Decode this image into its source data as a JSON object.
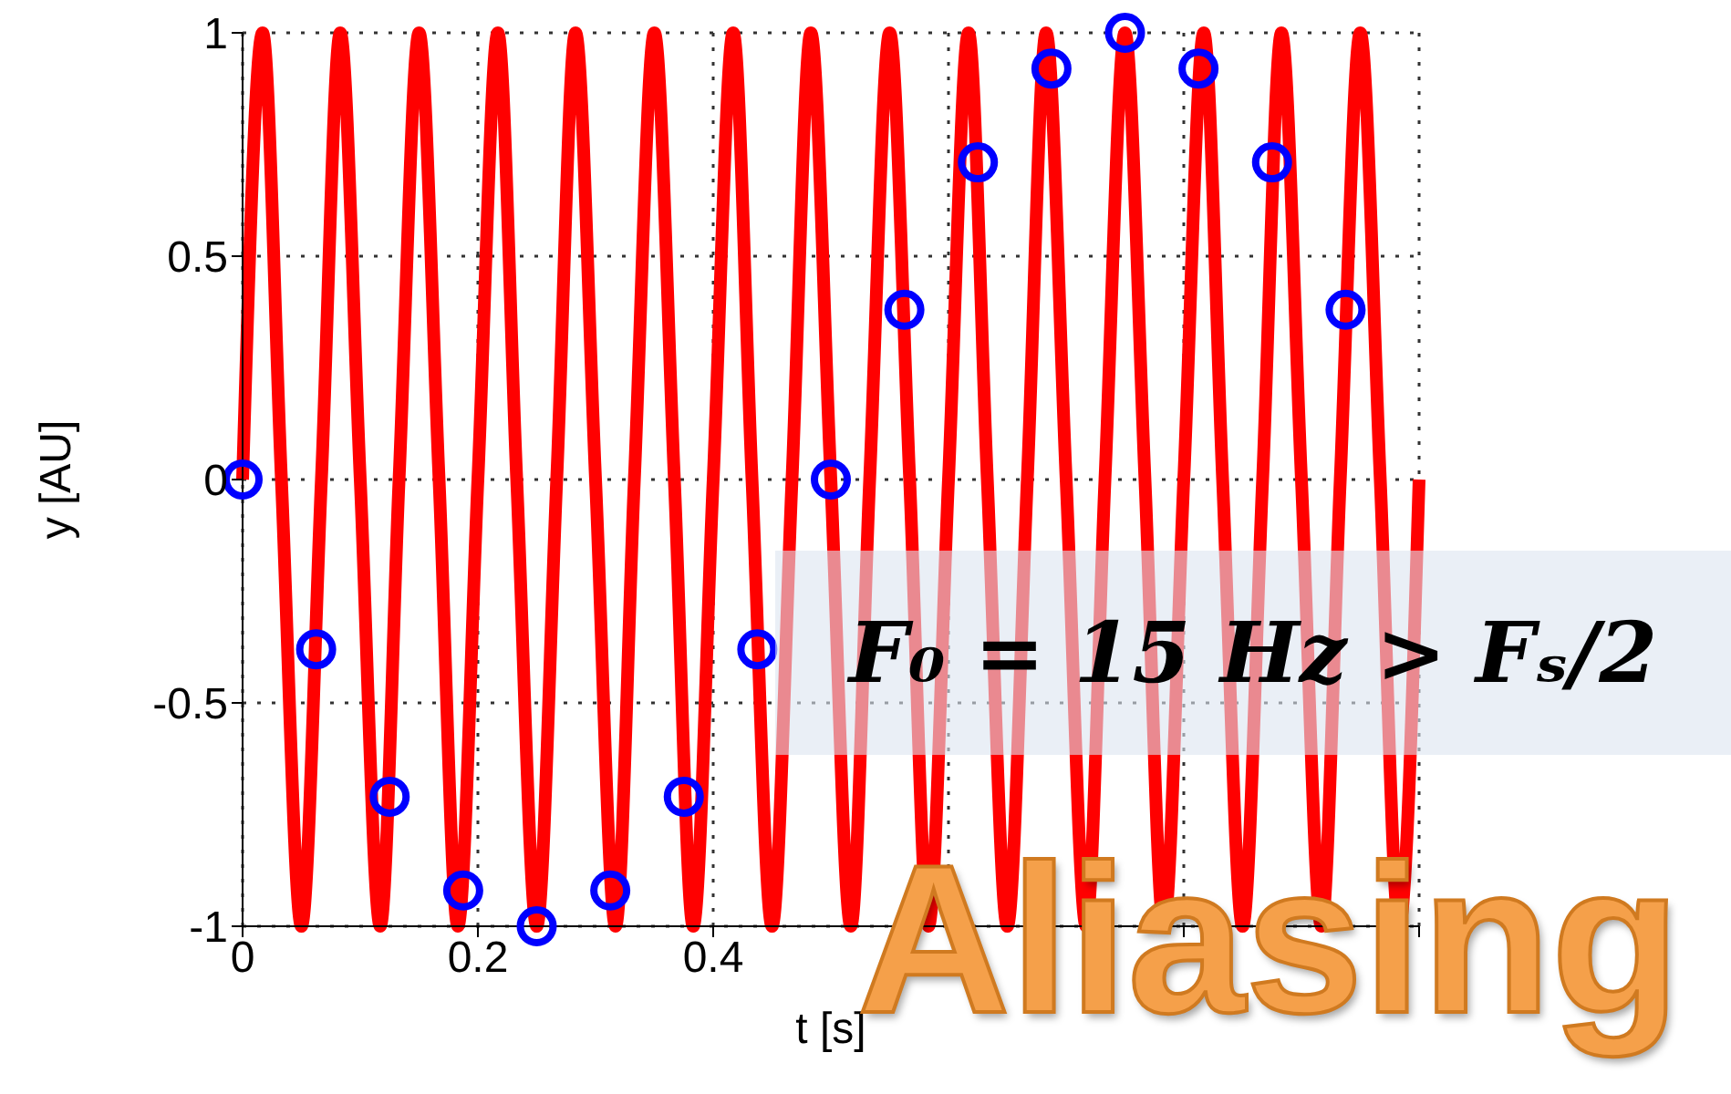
{
  "chart_data": {
    "type": "line",
    "xlabel": "t [s]",
    "ylabel": "y [AU]",
    "xlim": [
      0,
      1
    ],
    "xticks": [
      0,
      0.2,
      0.4,
      {
        "value": 0.6,
        "label": null
      },
      {
        "value": 0.8,
        "label": null
      },
      {
        "value": 1,
        "label": null
      }
    ],
    "ylim": [
      -1,
      1
    ],
    "yticks": [
      -1,
      -0.5,
      0,
      0.5,
      1
    ],
    "grid": true,
    "annotations": [
      "F₀ = 15 Hz > Fₛ/2",
      "Aliasing"
    ],
    "series": [
      {
        "color": "#ff0000",
        "marker": "none",
        "x": [
          0,
          0.017,
          0.033,
          0.05,
          0.067,
          0.083,
          0.1,
          0.117,
          0.133,
          0.15,
          0.167,
          0.183,
          0.2,
          0.217,
          0.233,
          0.25,
          0.267,
          0.283,
          0.3,
          0.317,
          0.333,
          0.35,
          0.367,
          0.383,
          0.4,
          0.417,
          0.433,
          0.45,
          0.467,
          0.483,
          0.5,
          0.517,
          0.533,
          0.55,
          0.567,
          0.583,
          0.6,
          0.617,
          0.633,
          0.65,
          0.667,
          0.683,
          0.7,
          0.717,
          0.733,
          0.75,
          0.767,
          0.783,
          0.8,
          0.817,
          0.833,
          0.85,
          0.867,
          0.883,
          0.9,
          0.917,
          0.933,
          0.95,
          0.967,
          0.983,
          1
        ],
        "values": [
          0,
          1,
          0,
          -1,
          0,
          1,
          0,
          -1,
          0,
          1,
          0,
          -1,
          0,
          1,
          0,
          -1,
          0,
          1,
          0,
          -1,
          0,
          1,
          0,
          -1,
          0,
          1,
          0,
          -1,
          0,
          1,
          0,
          -1,
          0,
          1,
          0,
          -1,
          0,
          1,
          0,
          -1,
          0,
          1,
          0,
          -1,
          0,
          1,
          0,
          -1,
          0,
          1,
          0,
          -1,
          0,
          1,
          0,
          -1,
          0,
          1,
          0,
          -1,
          0
        ]
      },
      {
        "type": "scatter",
        "color": "#0000ff",
        "marker": "circle",
        "x": [
          0,
          0.0625,
          0.125,
          0.1875,
          0.25,
          0.3125,
          0.375,
          0.4375,
          0.5,
          0.5625,
          0.625,
          0.6875,
          0.75,
          0.8125,
          0.875,
          0.9375
        ],
        "values": [
          0,
          -0.38,
          -0.71,
          -0.92,
          -1,
          -0.92,
          -0.71,
          -0.38,
          0,
          0.38,
          0.71,
          0.92,
          1,
          0.92,
          0.71,
          0.38
        ]
      }
    ]
  }
}
